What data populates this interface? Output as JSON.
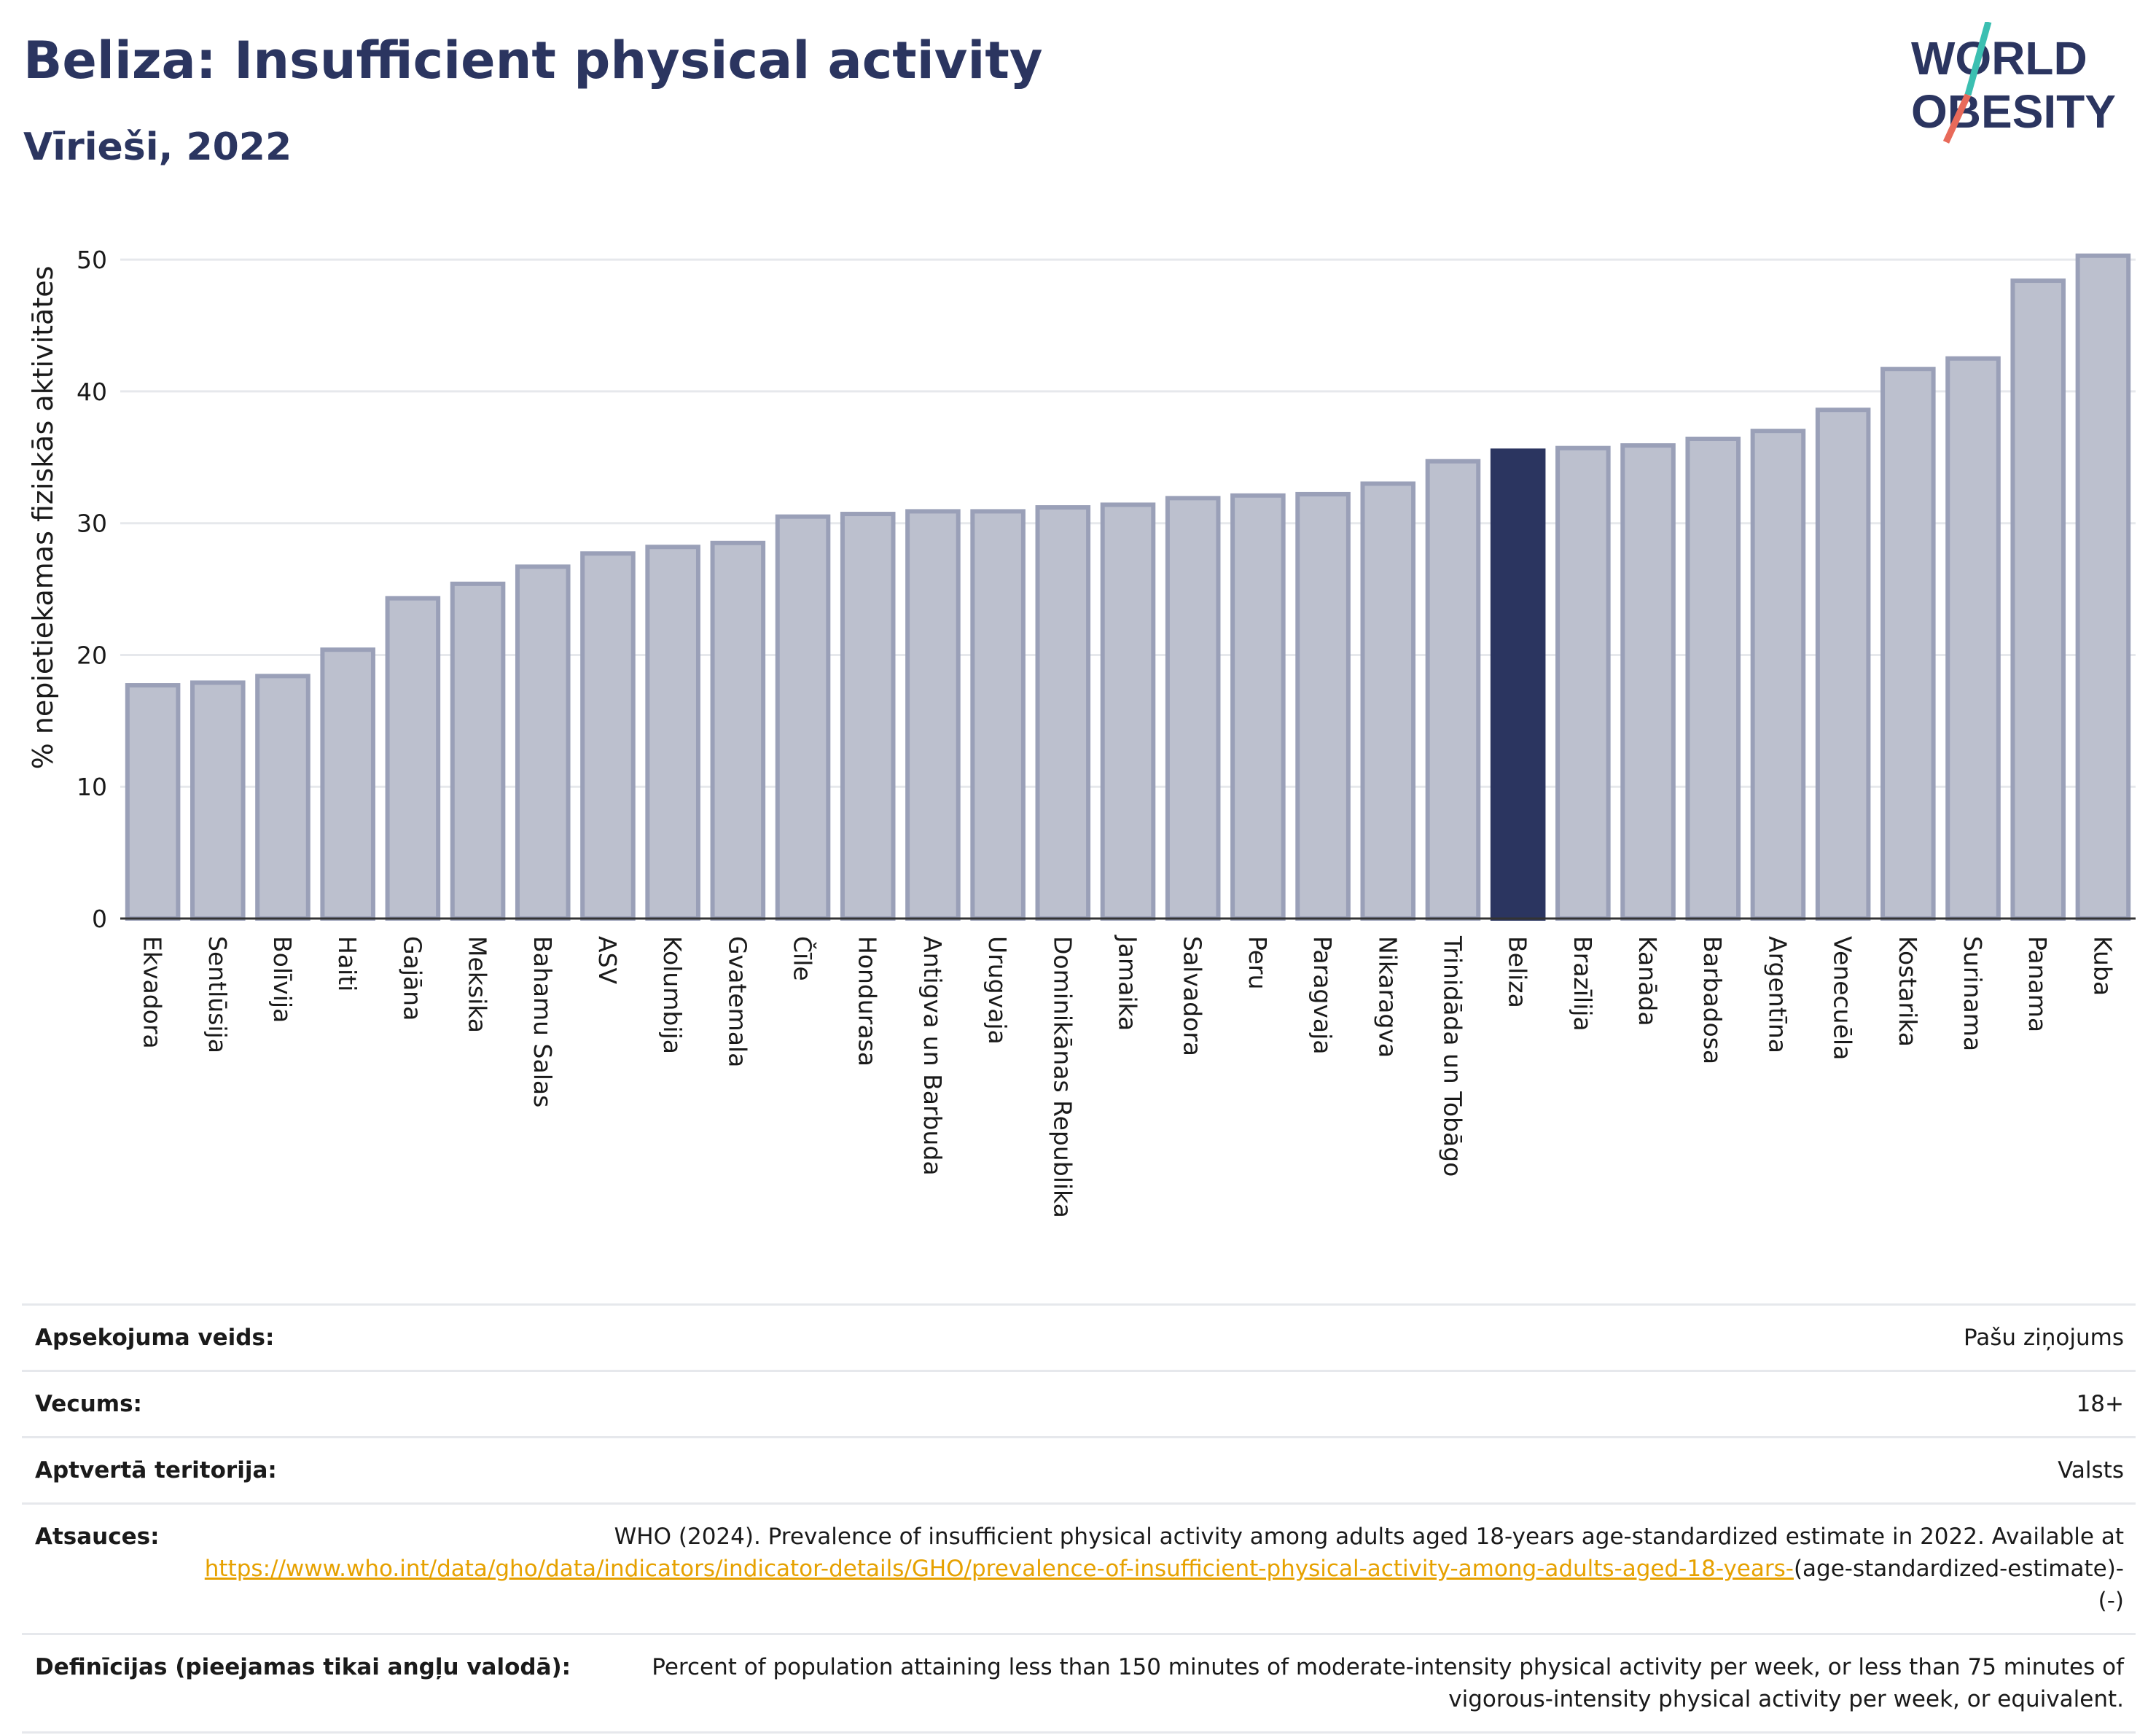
{
  "title": "Beliza: Insufficient physical activity",
  "subtitle": "Vīrieši, 2022",
  "logo": {
    "line1": "WORLD",
    "line2": "OBESITY",
    "accent_colors": [
      "#3bbfb1",
      "#e86a5a"
    ]
  },
  "colors": {
    "bar": "#bcc0ce",
    "bar_stroke": "#9aa0b8",
    "highlight": "#2b3560",
    "text": "#2b3560",
    "link": "#e6a100"
  },
  "chart_data": {
    "type": "bar",
    "ylabel": "% nepietiekamas fiziskās aktivitātes",
    "ylim": [
      0,
      52
    ],
    "yticks": [
      0,
      10,
      20,
      30,
      40,
      50
    ],
    "grid": true,
    "highlight": "Beliza",
    "categories": [
      "Ekvadora",
      "Sentlūsija",
      "Bolīvija",
      "Haiti",
      "Gajāna",
      "Meksika",
      "Bahamu Salas",
      "ASV",
      "Kolumbija",
      "Gvatemala",
      "Čīle",
      "Hondurasa",
      "Antigva un Barbuda",
      "Urugvaja",
      "Dominikānas Republika",
      "Jamaika",
      "Salvadora",
      "Peru",
      "Paragvaja",
      "Nikaragva",
      "Trinidāda un Tobāgo",
      "Beliza",
      "Brazīlija",
      "Kanāda",
      "Barbadosa",
      "Argentīna",
      "Venecuēla",
      "Kostarika",
      "Surinama",
      "Panama",
      "Kuba"
    ],
    "values": [
      17.7,
      17.9,
      18.4,
      20.4,
      24.3,
      25.4,
      26.7,
      27.7,
      28.2,
      28.5,
      30.5,
      30.7,
      30.9,
      30.9,
      31.2,
      31.4,
      31.9,
      32.1,
      32.2,
      33.0,
      34.7,
      35.5,
      35.7,
      35.9,
      36.4,
      37.0,
      38.6,
      41.7,
      42.5,
      48.4,
      50.3
    ]
  },
  "info": [
    {
      "label": "Apsekojuma veids:",
      "value": "Pašu ziņojums"
    },
    {
      "label": "Vecums:",
      "value": "18+"
    },
    {
      "label": "Aptvertā teritorija:",
      "value": "Valsts"
    },
    {
      "label": "Atsauces:",
      "value": "WHO (2024). Prevalence of insufficient physical activity among adults aged 18-years age-standardized estimate in 2022. Available at",
      "link": "https://www.who.int/data/gho/data/indicators/indicator-details/GHO/prevalence-of-insufficient-physical-activity-among-adults-aged-18-years-",
      "suffix": "(age-standardized-estimate)-(-)"
    },
    {
      "label": "Definīcijas (pieejamas tikai angļu valodā):",
      "value": "Percent of population attaining less than 150 minutes of moderate-intensity physical activity per week, or less than 75 minutes of vigorous-intensity physical activity per week, or equivalent."
    }
  ]
}
